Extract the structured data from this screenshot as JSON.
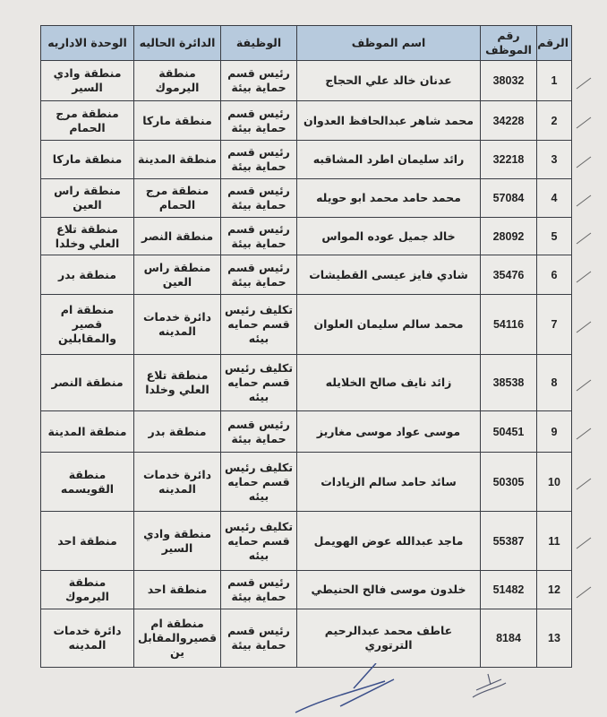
{
  "headers": {
    "num": "الرقم",
    "emp_no": "رقم الموظف",
    "name": "اسم الموظف",
    "job": "الوظيفة",
    "current_dept": "الدائرة الحاليه",
    "admin_unit": "الوحدة الاداريه"
  },
  "rows": [
    {
      "num": "1",
      "emp_no": "38032",
      "name": "عدنان خالد علي الحجاج",
      "job": [
        "رئيس قسم",
        "حماية بيئة"
      ],
      "current_dept": [
        "منطقة",
        "اليرموك"
      ],
      "admin_unit": [
        "منطقة وادي",
        "السير"
      ]
    },
    {
      "num": "2",
      "emp_no": "34228",
      "name": "محمد شاهر عبدالحافظ العدوان",
      "job": [
        "رئيس قسم",
        "حماية بيئة"
      ],
      "current_dept": [
        "منطقة ماركا"
      ],
      "admin_unit": [
        "منطقة مرج",
        "الحمام"
      ]
    },
    {
      "num": "3",
      "emp_no": "32218",
      "name": "رائد سليمان اطرد المشاقبه",
      "job": [
        "رئيس قسم",
        "حماية بيئة"
      ],
      "current_dept": [
        "منطقة المدينة"
      ],
      "admin_unit": [
        "منطقة ماركا"
      ]
    },
    {
      "num": "4",
      "emp_no": "57084",
      "name": "محمد حامد محمد ابو حويله",
      "job": [
        "رئيس قسم",
        "حماية بيئة"
      ],
      "current_dept": [
        "منطقة مرج",
        "الحمام"
      ],
      "admin_unit": [
        "منطقة راس",
        "العين"
      ]
    },
    {
      "num": "5",
      "emp_no": "28092",
      "name": "خالد جميل عوده المواس",
      "job": [
        "رئيس قسم",
        "حماية بيئة"
      ],
      "current_dept": [
        "منطقة النصر"
      ],
      "admin_unit": [
        "منطقة تلاع",
        "العلي وخلدا"
      ]
    },
    {
      "num": "6",
      "emp_no": "35476",
      "name": "شادي فايز عيسى القطيشات",
      "job": [
        "رئيس قسم",
        "حماية بيئة"
      ],
      "current_dept": [
        "منطقة راس",
        "العين"
      ],
      "admin_unit": [
        "منطقة بدر"
      ]
    },
    {
      "num": "7",
      "emp_no": "54116",
      "name": "محمد سالم سليمان العلوان",
      "job": [
        "تكليف رئيس",
        "قسم حمايه",
        "بيئه"
      ],
      "current_dept": [
        "دائرة خدمات",
        "المدينه"
      ],
      "admin_unit": [
        "منطقة ام",
        "قصير",
        "والمقابلين"
      ]
    },
    {
      "num": "8",
      "emp_no": "38538",
      "name": "زائد نايف صالح الخلايله",
      "job": [
        "تكليف رئيس",
        "قسم حمايه",
        "بيئه"
      ],
      "current_dept": [
        "منطقة تلاع",
        "العلي وخلدا"
      ],
      "admin_unit": [
        "منطقة النصر"
      ]
    },
    {
      "num": "9",
      "emp_no": "50451",
      "name": "موسى عواد موسى مغاريز",
      "job": [
        "رئيس قسم",
        "حماية بيئة"
      ],
      "current_dept": [
        "منطقة بدر"
      ],
      "admin_unit": [
        "منطقة المدينة"
      ]
    },
    {
      "num": "10",
      "emp_no": "50305",
      "name": "سائد حامد سالم الزيادات",
      "job": [
        "تكليف رئيس",
        "قسم حمايه",
        "بيئه"
      ],
      "current_dept": [
        "دائرة خدمات",
        "المدينه"
      ],
      "admin_unit": [
        "منطقة",
        "القويسمه"
      ]
    },
    {
      "num": "11",
      "emp_no": "55387",
      "name": "ماجد عبدالله عوض الهويمل",
      "job": [
        "تكليف رئيس",
        "قسم حمايه",
        "بيئه"
      ],
      "current_dept": [
        "منطقة وادي",
        "السير"
      ],
      "admin_unit": [
        "منطقة احد"
      ]
    },
    {
      "num": "12",
      "emp_no": "51482",
      "name": "خلدون موسى فالح الحنيطي",
      "job": [
        "رئيس قسم",
        "حماية بيئة"
      ],
      "current_dept": [
        "منطقة احد"
      ],
      "admin_unit": [
        "منطقة",
        "اليرموك"
      ]
    },
    {
      "num": "13",
      "emp_no": "8184",
      "name": "عاطف محمد عبدالرحيم الترتوري",
      "job": [
        "رئيس قسم",
        "حماية بيئة"
      ],
      "current_dept": [
        "منطقة ام",
        "قصيروالمقابل",
        "ين"
      ],
      "admin_unit": [
        "دائرة خدمات",
        "المدينه"
      ]
    }
  ],
  "colors": {
    "header_bg": "#b7cadd",
    "paper": "#e9e7e4",
    "ink": "#222222",
    "signature_ink": "#3b4f8a"
  }
}
